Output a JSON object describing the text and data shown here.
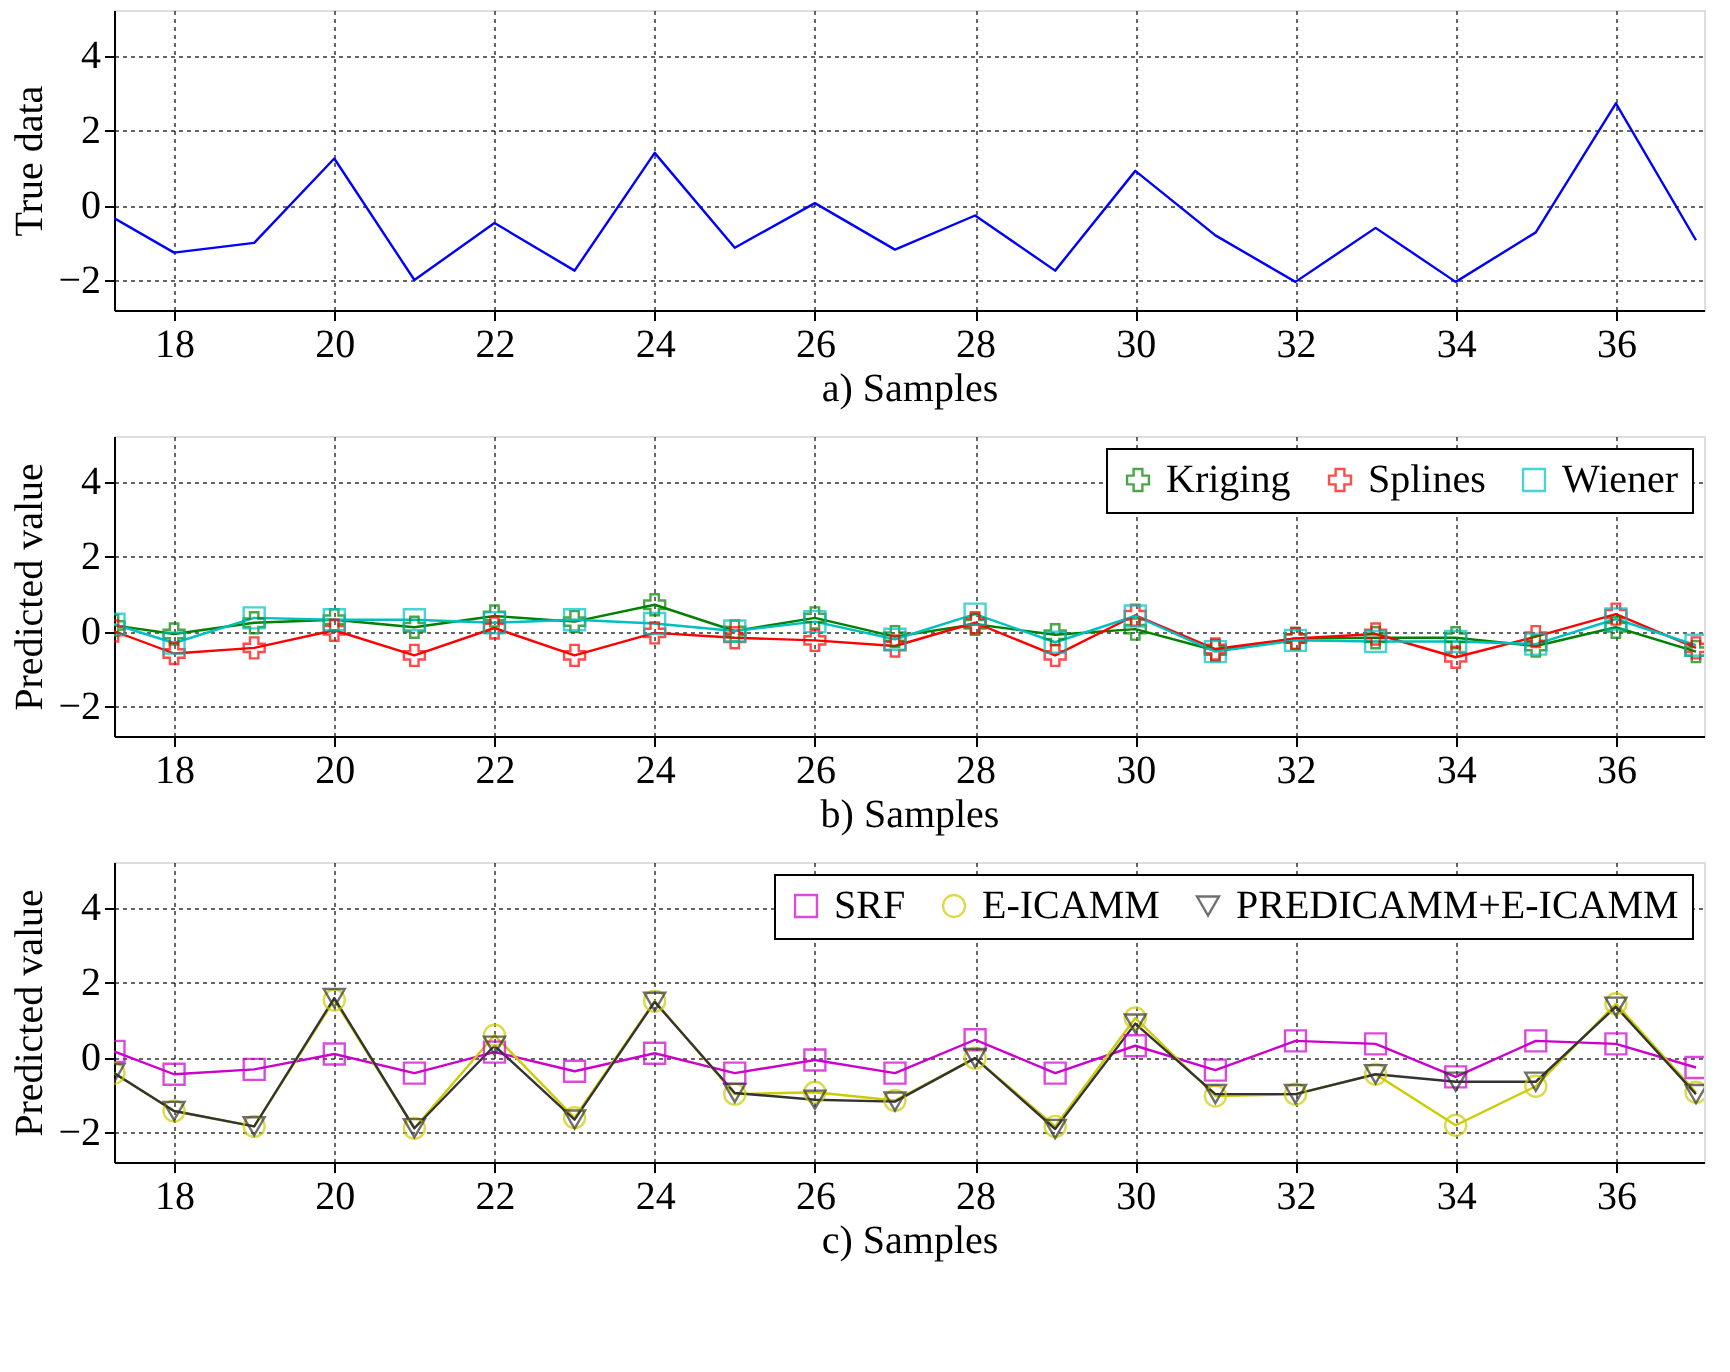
{
  "chart_data": [
    {
      "type": "line",
      "xlabel": "a) Samples",
      "ylabel": "True data",
      "x": [
        17.25,
        18,
        19,
        20,
        21,
        22,
        23,
        24,
        25,
        26,
        27,
        28,
        29,
        30,
        31,
        32,
        33,
        34,
        35,
        36,
        37
      ],
      "xlim": [
        17.25,
        37.1
      ],
      "xticks": [
        18,
        20,
        22,
        24,
        26,
        28,
        30,
        32,
        34,
        36
      ],
      "ylim": [
        -2.8,
        5.2
      ],
      "yticks": [
        -2,
        0,
        2,
        4
      ],
      "grid": true,
      "series": [
        {
          "color": "#0000ff",
          "marker": "none",
          "values": [
            -0.35,
            -1.27,
            -1.01,
            1.24,
            -2.0,
            -0.48,
            -1.75,
            1.39,
            -1.14,
            0.05,
            -1.19,
            -0.28,
            -1.75,
            0.91,
            -0.81,
            -2.05,
            -0.61,
            -2.05,
            -0.73,
            2.71,
            -0.94
          ]
        }
      ]
    },
    {
      "type": "line",
      "xlabel": "b) Samples",
      "ylabel": "Predicted value",
      "x": [
        17.25,
        18,
        19,
        20,
        21,
        22,
        23,
        24,
        25,
        26,
        27,
        28,
        29,
        30,
        31,
        32,
        33,
        34,
        35,
        36,
        37
      ],
      "xlim": [
        17.25,
        37.1
      ],
      "xticks": [
        18,
        20,
        22,
        24,
        26,
        28,
        30,
        32,
        34,
        36
      ],
      "ylim": [
        -2.8,
        5.2
      ],
      "yticks": [
        -2,
        0,
        2,
        4
      ],
      "grid": true,
      "legend": "top right",
      "series": [
        {
          "name": "Kriging",
          "color": "#008000",
          "marker": "cross",
          "values": [
            0.15,
            -0.08,
            0.22,
            0.3,
            0.1,
            0.4,
            0.25,
            0.7,
            0,
            0.35,
            -0.15,
            0.18,
            -0.1,
            0.05,
            -0.52,
            -0.2,
            -0.18,
            -0.18,
            -0.4,
            0.1,
            -0.55
          ]
        },
        {
          "name": "Splines",
          "color": "#ff0000",
          "marker": "cross",
          "values": [
            0,
            -0.6,
            -0.45,
            0.02,
            -0.65,
            0.08,
            -0.65,
            -0.05,
            -0.18,
            -0.25,
            -0.4,
            0.22,
            -0.65,
            0.42,
            -0.48,
            -0.2,
            -0.08,
            -0.7,
            -0.15,
            0.45,
            -0.45
          ]
        },
        {
          "name": "Wiener",
          "color": "#00bfbf",
          "marker": "square",
          "values": [
            0.18,
            -0.32,
            0.35,
            0.3,
            0.3,
            0.22,
            0.3,
            0.2,
            0,
            0.25,
            -0.22,
            0.45,
            -0.3,
            0.4,
            -0.55,
            -0.25,
            -0.28,
            -0.28,
            -0.35,
            0.32,
            -0.38
          ]
        }
      ]
    },
    {
      "type": "line",
      "xlabel": "c) Samples",
      "ylabel": "Predicted value",
      "x": [
        17.25,
        18,
        19,
        20,
        21,
        22,
        23,
        24,
        25,
        26,
        27,
        28,
        29,
        30,
        31,
        32,
        33,
        34,
        35,
        36,
        37
      ],
      "xlim": [
        17.25,
        37.1
      ],
      "xticks": [
        18,
        20,
        22,
        24,
        26,
        28,
        30,
        32,
        34,
        36
      ],
      "ylim": [
        -2.8,
        5.2
      ],
      "yticks": [
        -2,
        0,
        2,
        4
      ],
      "grid": true,
      "legend": "top right",
      "series": [
        {
          "name": "SRF",
          "color": "#cc00cc",
          "marker": "square",
          "values": [
            0.15,
            -0.46,
            -0.33,
            0.08,
            -0.43,
            0.13,
            -0.38,
            0.1,
            -0.43,
            -0.08,
            -0.43,
            0.46,
            -0.43,
            0.3,
            -0.35,
            0.43,
            0.35,
            -0.53,
            0.43,
            0.35,
            -0.28
          ]
        },
        {
          "name": "E-ICAMM",
          "color": "#cccc00",
          "marker": "circle",
          "values": [
            -0.43,
            -1.44,
            -1.85,
            1.52,
            -1.9,
            0.58,
            -1.62,
            1.49,
            -0.99,
            -0.94,
            -1.16,
            -0.03,
            -1.85,
            1.04,
            -1.04,
            -0.99,
            -0.46,
            -1.82,
            -0.78,
            1.42,
            -0.94
          ]
        },
        {
          "name": "PREDICAMM+E-ICAMM",
          "color": "#333333",
          "marker": "triangle",
          "values": [
            -0.43,
            -1.44,
            -1.85,
            1.57,
            -1.9,
            0.3,
            -1.67,
            1.47,
            -0.96,
            -1.14,
            -1.19,
            -0.03,
            -1.92,
            0.89,
            -0.99,
            -0.99,
            -0.46,
            -0.66,
            -0.66,
            1.34,
            -0.99
          ]
        }
      ]
    }
  ]
}
